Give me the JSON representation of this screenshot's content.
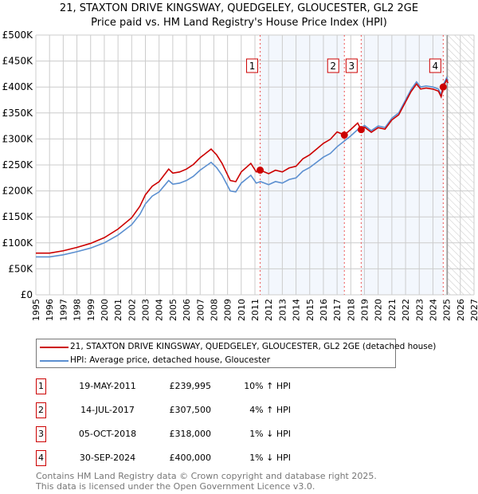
{
  "title_line1": "21, STAXTON DRIVE KINGSWAY, QUEDGELEY, GLOUCESTER, GL2 2GE",
  "title_line2": "Price paid vs. HM Land Registry's House Price Index (HPI)",
  "chart_data": {
    "type": "line",
    "xlim": [
      1995,
      2027
    ],
    "ylim": [
      0,
      500000
    ],
    "yticks": [
      {
        "v": 0,
        "label": "£0"
      },
      {
        "v": 50000,
        "label": "£50K"
      },
      {
        "v": 100000,
        "label": "£100K"
      },
      {
        "v": 150000,
        "label": "£150K"
      },
      {
        "v": 200000,
        "label": "£200K"
      },
      {
        "v": 250000,
        "label": "£250K"
      },
      {
        "v": 300000,
        "label": "£300K"
      },
      {
        "v": 350000,
        "label": "£350K"
      },
      {
        "v": 400000,
        "label": "£400K"
      },
      {
        "v": 450000,
        "label": "£450K"
      },
      {
        "v": 500000,
        "label": "£500K"
      }
    ],
    "xticks": [
      "1995",
      "1996",
      "1997",
      "1998",
      "1999",
      "2000",
      "2001",
      "2002",
      "2003",
      "2004",
      "2005",
      "2006",
      "2007",
      "2008",
      "2009",
      "2010",
      "2011",
      "2012",
      "2013",
      "2014",
      "2015",
      "2016",
      "2017",
      "2018",
      "2019",
      "2020",
      "2021",
      "2022",
      "2023",
      "2024",
      "2025",
      "2026",
      "2027"
    ],
    "forecast_start": 2025.05,
    "series": [
      {
        "name": "21, STAXTON DRIVE KINGSWAY, QUEDGELEY, GLOUCESTER, GL2 2GE (detached house)",
        "color": "#cc0000"
      },
      {
        "name": "HPI: Average price, detached house, Gloucester",
        "color": "#5b8fd0",
        "x": [
          1995,
          1996,
          1997,
          1998,
          1999,
          2000,
          2001,
          2002,
          2002.6,
          2003,
          2003.5,
          2004,
          2004.7,
          2005,
          2005.5,
          2006,
          2006.5,
          2007,
          2007.8,
          2008.2,
          2008.6,
          2009.2,
          2009.6,
          2010,
          2010.7,
          2011.1,
          2011.4,
          2012,
          2012.5,
          2013,
          2013.5,
          2014,
          2014.5,
          2015,
          2015.5,
          2016,
          2016.5,
          2017,
          2017.53,
          2018,
          2018.5,
          2018.76,
          2019,
          2019.5,
          2020,
          2020.5,
          2021,
          2021.5,
          2022,
          2022.4,
          2022.8,
          2023.1,
          2023.5,
          2024,
          2024.4,
          2024.6,
          2024.75,
          2025,
          2025.1
        ],
        "y": [
          73000,
          73000,
          77000,
          83000,
          90000,
          100000,
          115000,
          135000,
          155000,
          175000,
          190000,
          198000,
          220000,
          213000,
          215000,
          220000,
          228000,
          240000,
          255000,
          245000,
          230000,
          200000,
          198000,
          215000,
          230000,
          215000,
          218000,
          212000,
          218000,
          215000,
          222000,
          225000,
          238000,
          245000,
          255000,
          265000,
          272000,
          285000,
          296000,
          306000,
          318000,
          321000,
          326000,
          316000,
          325000,
          322000,
          340000,
          350000,
          375000,
          395000,
          410000,
          400000,
          402000,
          400000,
          396000,
          385000,
          404000,
          418000,
          412000
        ]
      }
    ],
    "sales": [
      {
        "n": "1",
        "x": 2011.38,
        "y": 239995,
        "date": "19-MAY-2011",
        "price": "£239,995",
        "hpi": "10% ↑ HPI"
      },
      {
        "n": "2",
        "x": 2017.53,
        "y": 307500,
        "date": "14-JUL-2017",
        "price": "£307,500",
        "hpi": "4% ↑ HPI"
      },
      {
        "n": "3",
        "x": 2018.76,
        "y": 318000,
        "date": "05-OCT-2018",
        "price": "£318,000",
        "hpi": "1% ↓ HPI"
      },
      {
        "n": "4",
        "x": 2024.75,
        "y": 400000,
        "date": "30-SEP-2024",
        "price": "£400,000",
        "hpi": "1% ↓ HPI"
      }
    ]
  },
  "footer_line1": "Contains HM Land Registry data © Crown copyright and database right 2025.",
  "footer_line2": "This data is licensed under the Open Government Licence v3.0."
}
